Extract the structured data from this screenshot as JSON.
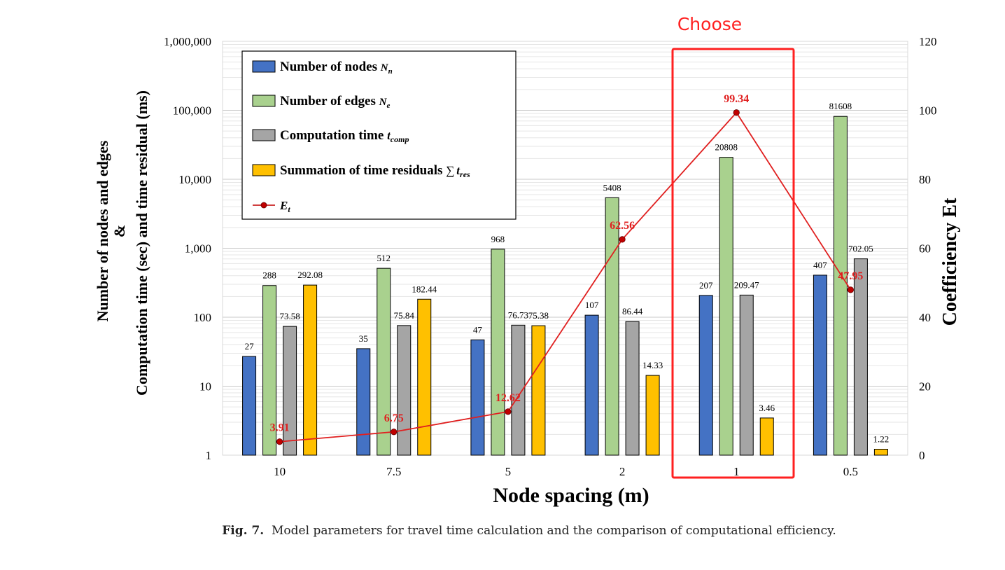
{
  "chart_data": {
    "type": "bar",
    "xlabel": "Node spacing (m)",
    "ylabel_left_line1": "Number of nodes and edges",
    "ylabel_left_line2": "&",
    "ylabel_left_line3": "Computation time (sec) and time residual (ms)",
    "ylabel_right": "Coefficiency Et",
    "categories": [
      "10",
      "7.5",
      "5",
      "2",
      "1",
      "0.5"
    ],
    "y_left": {
      "scale": "log",
      "lim": [
        1,
        1000000
      ],
      "ticks": [
        "1",
        "10",
        "100",
        "1,000",
        "10,000",
        "100,000",
        "1,000,000"
      ]
    },
    "y_right": {
      "scale": "linear",
      "lim": [
        0,
        120
      ],
      "ticks": [
        "0",
        "20",
        "40",
        "60",
        "80",
        "100",
        "120"
      ]
    },
    "grid": true,
    "legend_position": "top-left",
    "series": [
      {
        "name": "Number of nodes N_n",
        "color": "#4472C4",
        "values": [
          27,
          35,
          47,
          107,
          207,
          407
        ],
        "labels": [
          "27",
          "35",
          "47",
          "107",
          "207",
          "407"
        ]
      },
      {
        "name": "Number of edges N_e",
        "color": "#A9D18E",
        "values": [
          288,
          512,
          968,
          5408,
          20808,
          81608
        ],
        "labels": [
          "288",
          "512",
          "968",
          "5408",
          "20808",
          "81608"
        ]
      },
      {
        "name": "Computation time t_comp",
        "color": "#A5A5A5",
        "values": [
          73.58,
          75.84,
          76.73,
          86.44,
          209.47,
          702.05
        ],
        "labels": [
          "73.58",
          "75.84",
          "76.73",
          "86.44",
          "209.47",
          "702.05"
        ]
      },
      {
        "name": "Summation of time residuals Σ t_res",
        "color": "#FFC000",
        "values": [
          292.08,
          182.44,
          75.38,
          14.33,
          3.46,
          1.22
        ],
        "labels": [
          "292.08",
          "182.44",
          "75.38",
          "14.33",
          "3.46",
          "1.22"
        ]
      }
    ],
    "line_series": {
      "name": "E_t",
      "axis": "right",
      "color": "#E02020",
      "values": [
        3.91,
        6.75,
        12.62,
        62.56,
        99.34,
        47.95
      ],
      "labels": [
        "3.91",
        "6.75",
        "12.62",
        "62.56",
        "99.34",
        "47.95"
      ]
    },
    "annotation": {
      "text": "Choose",
      "category": "1",
      "color": "#FF2020"
    }
  },
  "legend": {
    "nodes_text": "Number of nodes ",
    "nodes_sym": "N",
    "nodes_sub": "n",
    "edges_text": "Number of edges ",
    "edges_sym": "N",
    "edges_sub": "e",
    "comp_text": "Computation time ",
    "comp_sym": "t",
    "comp_sub": "comp",
    "res_text": "Summation of time residuals ",
    "res_sum": "∑",
    "res_sym": "t",
    "res_sub": "res",
    "et_sym": "E",
    "et_sub": "t"
  },
  "caption": {
    "prefix": "Fig. 7.",
    "text": "Model parameters for travel time calculation and the comparison of computational efficiency."
  }
}
